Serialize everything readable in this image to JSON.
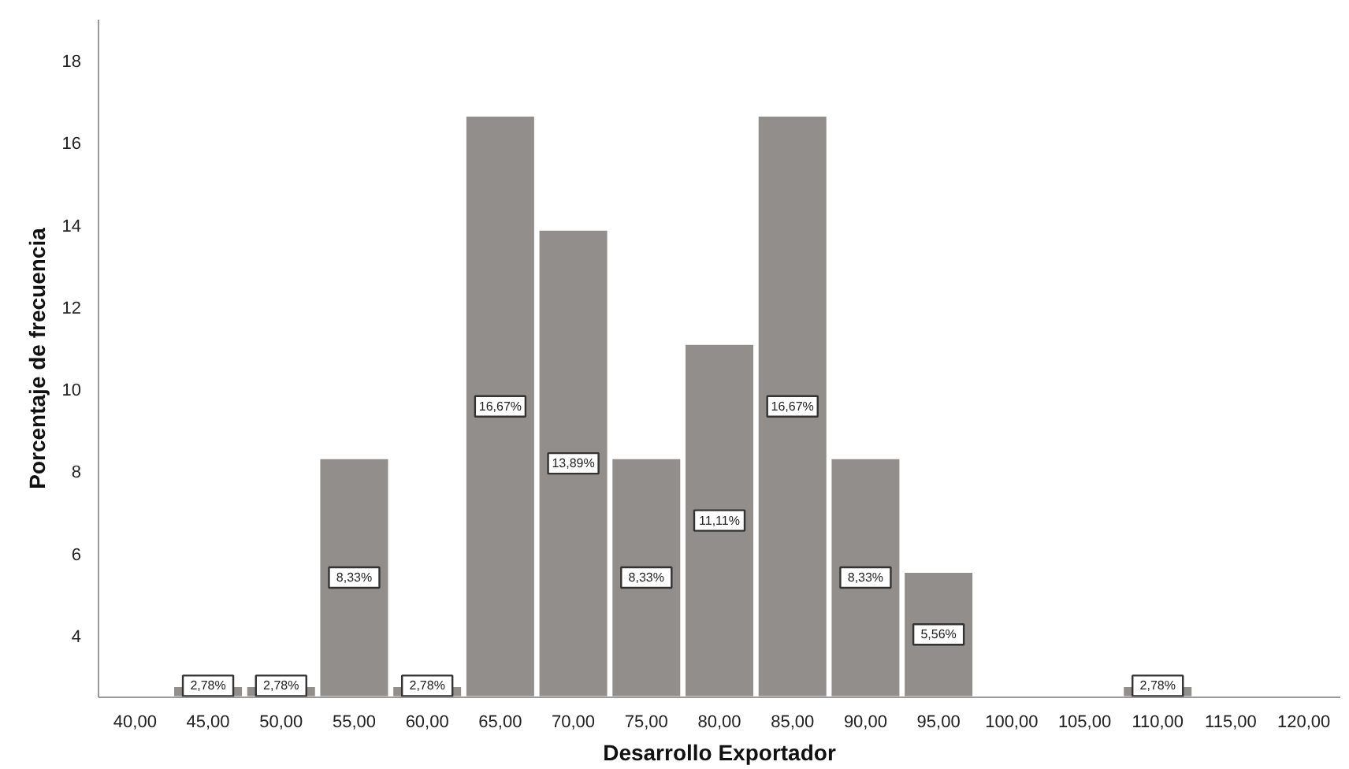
{
  "chart_data": {
    "type": "bar",
    "xlabel": "Desarrollo Exportador",
    "ylabel": "Porcentaje de frecuencia",
    "categories": [
      "40,00",
      "45,00",
      "50,00",
      "55,00",
      "60,00",
      "65,00",
      "70,00",
      "75,00",
      "80,00",
      "85,00",
      "90,00",
      "95,00",
      "100,00",
      "105,00",
      "110,00",
      "115,00",
      "120,00"
    ],
    "values": [
      null,
      2.78,
      2.78,
      8.33,
      2.78,
      16.67,
      13.89,
      8.33,
      11.11,
      16.67,
      8.33,
      5.56,
      null,
      null,
      2.78,
      null,
      null
    ],
    "value_labels": [
      null,
      "2,78%",
      "2,78%",
      "8,33%",
      "2,78%",
      "16,67%",
      "13,89%",
      "8,33%",
      "11,11%",
      "16,67%",
      "8,33%",
      "5,56%",
      null,
      null,
      "2,78%",
      null,
      null
    ],
    "color": "#928e8c",
    "ylim": [
      2.5,
      19
    ],
    "yticks": [
      4,
      6,
      8,
      10,
      12,
      14,
      16,
      18
    ],
    "grid": false
  }
}
